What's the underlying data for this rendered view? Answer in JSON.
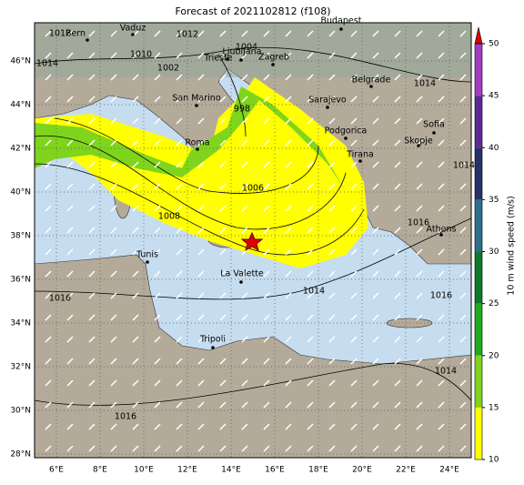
{
  "title": "Forecast of 2021102812 (f108)",
  "lon_ticks": [
    "6°E",
    "8°E",
    "10°E",
    "12°E",
    "14°E",
    "16°E",
    "18°E",
    "20°E",
    "22°E",
    "24°E"
  ],
  "lat_ticks": [
    "28°N",
    "30°N",
    "32°N",
    "34°N",
    "36°N",
    "38°N",
    "40°N",
    "42°N",
    "44°N",
    "46°N"
  ],
  "cities": [
    "Bern",
    "Vaduz",
    "Budapest",
    "Ljubljana",
    "Zagreb",
    "Trieste",
    "San Marino",
    "Sarajevo",
    "Belgrade",
    "Roma",
    "Podgorica",
    "Skopje",
    "Sofia",
    "Tirana",
    "Athens",
    "Tunis",
    "La Valette",
    "Tripoli"
  ],
  "isobar_labels": [
    "1012",
    "1012",
    "1014",
    "1010",
    "1002",
    "1004",
    "998",
    "1006",
    "1008",
    "1014",
    "1014",
    "1016",
    "1016",
    "1014",
    "1016",
    "1014",
    "1016"
  ],
  "colorbar": {
    "label": "10 m wind speed (m/s)",
    "ticks": [
      10,
      15,
      20,
      25,
      30,
      35,
      40,
      45,
      50
    ],
    "colors": [
      "#ffff00",
      "#7fd41c",
      "#1faa1f",
      "#0c7a2a",
      "#2e6f8e",
      "#26306a",
      "#5c2a96",
      "#a23cc0"
    ],
    "extend_color": "#e00000"
  }
}
